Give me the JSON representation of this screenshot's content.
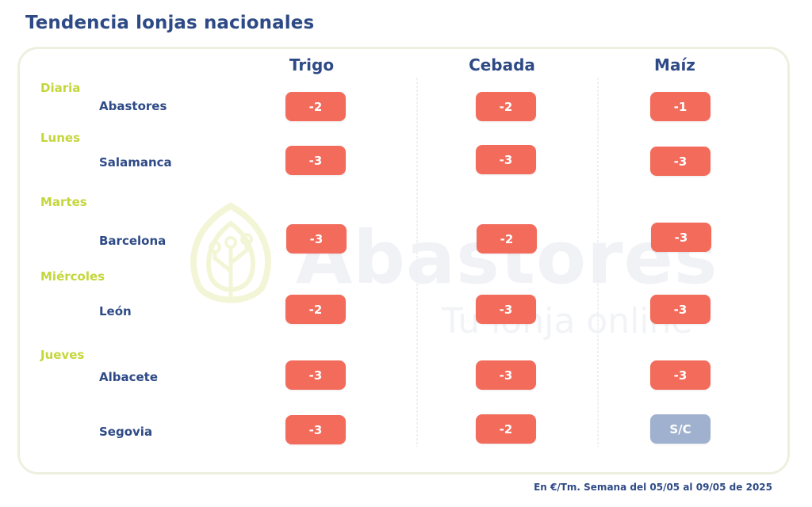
{
  "title": "Tendencia lonjas nacionales",
  "watermark": {
    "brand": "Abastores",
    "tagline": "Tu lonja online"
  },
  "columns": [
    "Trigo",
    "Cebada",
    "Maíz"
  ],
  "days": [
    "Diaria",
    "Lunes",
    "Martes",
    "Miércoles",
    "Jueves"
  ],
  "rows": [
    {
      "market": "Abastores",
      "values": [
        "-2",
        "-2",
        "-1"
      ]
    },
    {
      "market": "Salamanca",
      "values": [
        "-3",
        "-3",
        "-3"
      ]
    },
    {
      "market": "Barcelona",
      "values": [
        "-3",
        "-2",
        "-3"
      ]
    },
    {
      "market": "León",
      "values": [
        "-2",
        "-3",
        "-3"
      ]
    },
    {
      "market": "Albacete",
      "values": [
        "-3",
        "-3",
        "-3"
      ]
    },
    {
      "market": "Segovia",
      "values": [
        "-3",
        "-2",
        "S/C"
      ]
    }
  ],
  "footnote": "En €/Tm. Semana del 05/05 al 09/05 de 2025",
  "colors": {
    "negative": "#f26b5b",
    "no_quote": "#9fb1cf",
    "accent_day": "#c5d63c",
    "navy": "#2e4a86"
  }
}
